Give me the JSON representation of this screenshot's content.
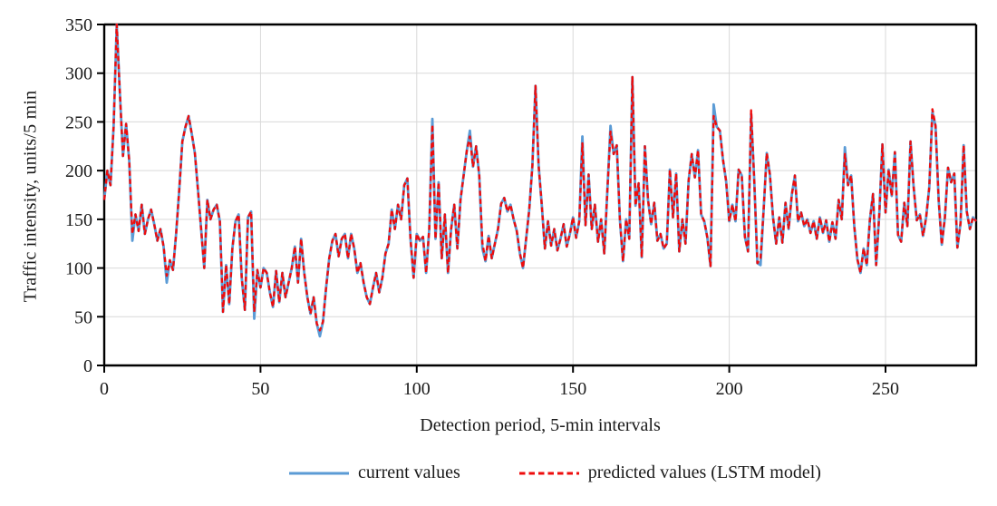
{
  "figure": {
    "background": "#ffffff"
  },
  "colors": {
    "current_series": "#5B9BD5",
    "predicted_series": "#EE0C0C",
    "grid": "#D9D9D9",
    "axis": "#000000",
    "text": "#1a1a1a"
  },
  "y_axis": {
    "title": "Traffic intensity, units/5 min",
    "min": 0,
    "max": 350,
    "tick_step": 50,
    "ticks": [
      0,
      50,
      100,
      150,
      200,
      250,
      300,
      350
    ]
  },
  "x_axis": {
    "title": "Detection period, 5-min intervals",
    "min": 0,
    "max": 279,
    "tick_step": 50,
    "ticks": [
      0,
      50,
      100,
      150,
      200,
      250
    ]
  },
  "legend": {
    "items": [
      {
        "label": "current values",
        "color": "#5B9BD5",
        "line_style": "solid"
      },
      {
        "label": "predicted values (LSTM model)",
        "color": "#EE0C0C",
        "line_style": "dashed"
      }
    ]
  },
  "chart_data": {
    "type": "line",
    "title": "",
    "xlabel": "Detection period, 5-min intervals",
    "ylabel": "Traffic intensity, units/5 min",
    "xlim": [
      0,
      279
    ],
    "ylim": [
      0,
      350
    ],
    "grid": true,
    "legend_position": "bottom",
    "x_start": 0,
    "x_step": 1,
    "series": [
      {
        "name": "current values",
        "color": "#5B9BD5",
        "style": "solid",
        "values": [
          170,
          200,
          185,
          245,
          350,
          280,
          215,
          248,
          210,
          128,
          155,
          138,
          165,
          135,
          150,
          160,
          145,
          128,
          140,
          122,
          85,
          108,
          98,
          135,
          180,
          230,
          245,
          256,
          238,
          218,
          180,
          140,
          100,
          170,
          150,
          160,
          165,
          148,
          55,
          103,
          63,
          120,
          148,
          155,
          90,
          57,
          152,
          158,
          48,
          98,
          80,
          100,
          95,
          75,
          60,
          97,
          65,
          95,
          70,
          85,
          100,
          122,
          85,
          130,
          95,
          70,
          53,
          70,
          43,
          30,
          45,
          80,
          110,
          128,
          135,
          112,
          130,
          135,
          110,
          135,
          120,
          95,
          105,
          85,
          70,
          63,
          80,
          95,
          75,
          90,
          115,
          125,
          160,
          140,
          165,
          150,
          185,
          192,
          130,
          90,
          135,
          128,
          132,
          95,
          140,
          253,
          130,
          188,
          110,
          155,
          95,
          140,
          165,
          120,
          170,
          195,
          220,
          241,
          204,
          225,
          195,
          120,
          107,
          133,
          110,
          125,
          140,
          166,
          172,
          158,
          165,
          150,
          138,
          115,
          100,
          130,
          160,
          205,
          287,
          205,
          165,
          120,
          148,
          123,
          140,
          118,
          130,
          145,
          122,
          135,
          152,
          131,
          148,
          235,
          144,
          196,
          140,
          165,
          127,
          150,
          115,
          180,
          246,
          217,
          226,
          150,
          107,
          150,
          130,
          296,
          164,
          187,
          111,
          225,
          170,
          145,
          167,
          128,
          135,
          120,
          125,
          201,
          152,
          197,
          117,
          150,
          125,
          190,
          217,
          193,
          221,
          155,
          148,
          131,
          102,
          268,
          245,
          241,
          211,
          189,
          148,
          165,
          148,
          201,
          195,
          132,
          117,
          258,
          189,
          105,
          103,
          160,
          218,
          196,
          152,
          125,
          152,
          126,
          167,
          140,
          175,
          195,
          148,
          157,
          143,
          150,
          136,
          148,
          130,
          152,
          136,
          149,
          127,
          147,
          130,
          170,
          150,
          224,
          185,
          195,
          143,
          109,
          95,
          120,
          103,
          150,
          176,
          103,
          155,
          227,
          157,
          201,
          174,
          219,
          134,
          127,
          167,
          143,
          230,
          183,
          149,
          155,
          133,
          152,
          183,
          260,
          246,
          170,
          124,
          152,
          203,
          188,
          197,
          121,
          146,
          226,
          158,
          140,
          152,
          148
        ]
      },
      {
        "name": "predicted values (LSTM model)",
        "color": "#EE0C0C",
        "style": "dashed",
        "values": [
          170,
          200,
          185,
          245,
          350,
          280,
          215,
          248,
          210,
          135,
          155,
          138,
          165,
          135,
          150,
          160,
          145,
          128,
          140,
          122,
          92,
          108,
          98,
          135,
          180,
          230,
          245,
          256,
          238,
          218,
          180,
          140,
          100,
          170,
          150,
          160,
          165,
          148,
          55,
          103,
          63,
          120,
          148,
          155,
          90,
          57,
          152,
          158,
          55,
          98,
          80,
          100,
          95,
          75,
          60,
          97,
          65,
          95,
          70,
          85,
          100,
          122,
          85,
          130,
          95,
          70,
          53,
          70,
          43,
          36,
          45,
          80,
          110,
          128,
          135,
          112,
          130,
          135,
          110,
          135,
          120,
          95,
          105,
          85,
          70,
          63,
          80,
          95,
          75,
          90,
          115,
          125,
          160,
          140,
          165,
          150,
          185,
          192,
          130,
          90,
          135,
          128,
          132,
          95,
          140,
          247,
          130,
          188,
          110,
          155,
          95,
          140,
          165,
          120,
          170,
          195,
          220,
          235,
          204,
          225,
          195,
          126,
          107,
          133,
          110,
          125,
          140,
          166,
          172,
          158,
          165,
          150,
          138,
          115,
          100,
          130,
          160,
          205,
          287,
          205,
          165,
          120,
          148,
          123,
          140,
          118,
          130,
          145,
          122,
          135,
          152,
          131,
          148,
          228,
          144,
          196,
          140,
          165,
          127,
          150,
          115,
          180,
          240,
          217,
          226,
          150,
          107,
          150,
          130,
          296,
          164,
          187,
          111,
          225,
          170,
          145,
          167,
          128,
          135,
          120,
          125,
          201,
          152,
          197,
          117,
          150,
          125,
          190,
          217,
          193,
          221,
          155,
          148,
          131,
          102,
          256,
          245,
          241,
          211,
          189,
          148,
          165,
          148,
          201,
          195,
          132,
          117,
          262,
          189,
          105,
          110,
          160,
          218,
          196,
          152,
          125,
          152,
          126,
          167,
          140,
          175,
          195,
          148,
          157,
          143,
          150,
          136,
          148,
          130,
          152,
          136,
          149,
          127,
          147,
          130,
          170,
          150,
          217,
          185,
          195,
          143,
          109,
          95,
          120,
          103,
          150,
          176,
          103,
          155,
          227,
          157,
          201,
          174,
          219,
          134,
          127,
          167,
          143,
          230,
          183,
          149,
          155,
          133,
          152,
          183,
          263,
          246,
          170,
          124,
          152,
          203,
          188,
          197,
          121,
          146,
          226,
          158,
          140,
          152,
          148
        ]
      }
    ]
  }
}
